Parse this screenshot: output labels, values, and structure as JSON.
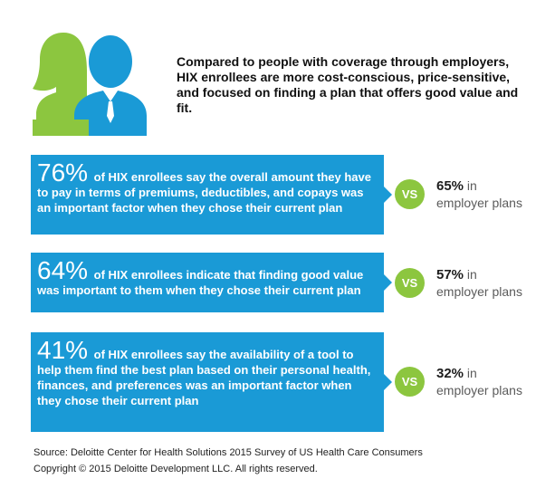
{
  "header": {
    "text": "Compared to people with coverage through employers, HIX enrollees are more cost-conscious, price-sensitive, and focused on finding a plan that offers good value and fit."
  },
  "colors": {
    "accent_blue": "#1a9ad6",
    "accent_green": "#8cc63f"
  },
  "icon": "two-people-icon",
  "stats": [
    {
      "percent": "76%",
      "text": "of HIX enrollees say the overall amount they have to pay in terms of premiums, deductibles, and copays was an important factor when they chose their current plan",
      "vs": "VS",
      "compare_percent": "65%",
      "compare_in": "in",
      "compare_label": "employer plans"
    },
    {
      "percent": "64%",
      "text": "of HIX enrollees indicate that finding good value was important to them when they chose their current plan",
      "vs": "VS",
      "compare_percent": "57%",
      "compare_in": "in",
      "compare_label": "employer plans"
    },
    {
      "percent": "41%",
      "text": "of HIX enrollees say the availability of a tool to help them find the best plan based on their personal health, finances, and preferences was an important factor when they chose their current plan",
      "vs": "VS",
      "compare_percent": "32%",
      "compare_in": "in",
      "compare_label": "employer plans"
    }
  ],
  "footer": {
    "source": "Source: Deloitte Center for Health Solutions 2015 Survey of US Health Care Consumers",
    "copyright": "Copyright © 2015 Deloitte Development LLC. All rights reserved."
  }
}
